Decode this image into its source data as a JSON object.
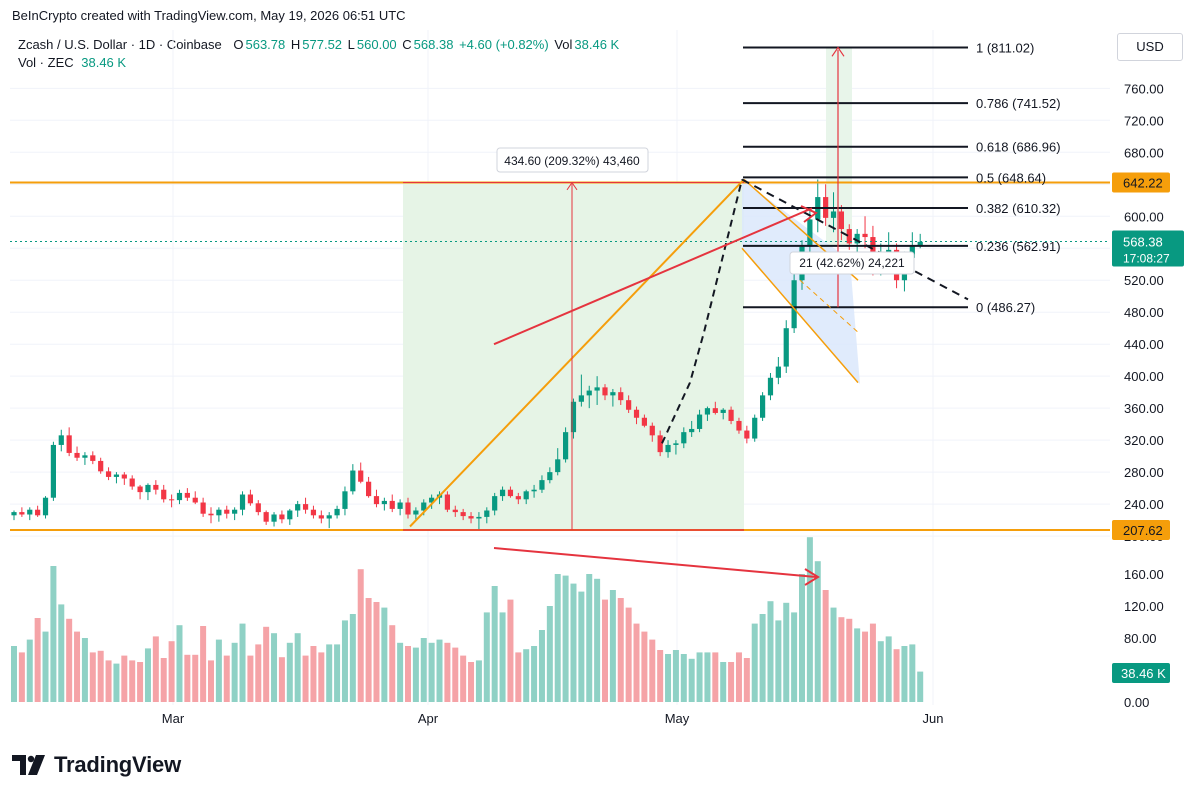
{
  "header": {
    "attribution": "BeInCrypto created with TradingView.com, May 19, 2026 06:51 UTC",
    "symbol": "Zcash / U.S. Dollar · 1D · Coinbase",
    "o_label": "O",
    "o_value": "563.78",
    "h_label": "H",
    "h_value": "577.52",
    "l_label": "L",
    "l_value": "560.00",
    "c_label": "C",
    "c_value": "568.38",
    "change": "+4.60 (+0.82%)",
    "vol_label": "Vol",
    "vol_value": "38.46 K",
    "vol_row_label": "Vol · ZEC",
    "vol_row_value": "38.46 K"
  },
  "currency_button": "USD",
  "brand": "TradingView",
  "colors": {
    "up": "#089981",
    "down": "#f23645",
    "vol_up": "#8fd1c5",
    "vol_down": "#f5a3a7",
    "orange": "#f59e0b",
    "red": "#e5343f",
    "green_zone": "#e6f4e6",
    "blue_channel": "#dbe8fb"
  },
  "chart_data": {
    "type": "candlestick",
    "xlabels": [
      "Mar",
      "Apr",
      "May",
      "Jun"
    ],
    "price_ticks": [
      "760.00",
      "720.00",
      "680.00",
      "640.00",
      "600.00",
      "560.00",
      "520.00",
      "480.00",
      "440.00",
      "400.00",
      "360.00",
      "320.00",
      "280.00",
      "240.00",
      "200.00"
    ],
    "volume_ticks": [
      "160.00",
      "120.00",
      "80.00",
      "40.00",
      "0.00"
    ],
    "price_range": [
      196,
      812
    ],
    "last_price": "568.38",
    "countdown": "17:08:27",
    "last_volume": "38.46 K",
    "level_tags": [
      {
        "price": 642.22,
        "label": "642.22"
      },
      {
        "price": 207.62,
        "label": "207.62"
      }
    ],
    "fib_levels": [
      {
        "price": 811.02,
        "label": "1 (811.02)"
      },
      {
        "price": 741.52,
        "label": "0.786 (741.52)"
      },
      {
        "price": 686.96,
        "label": "0.618 (686.96)"
      },
      {
        "price": 648.64,
        "label": "0.5 (648.64)"
      },
      {
        "price": 610.32,
        "label": "0.382 (610.32)"
      },
      {
        "price": 562.91,
        "label": "0.236 (562.91)"
      },
      {
        "price": 486.27,
        "label": "0 (486.27)"
      }
    ],
    "measure_rally": "434.60 (209.32%) 43,460",
    "measure_bounce": "21 (42.62%) 24,221",
    "candles": [
      [
        226,
        232,
        220,
        230,
        70
      ],
      [
        230,
        236,
        224,
        227,
        62
      ],
      [
        227,
        236,
        220,
        233,
        78
      ],
      [
        233,
        238,
        224,
        226,
        105
      ],
      [
        226,
        250,
        222,
        248,
        88
      ],
      [
        248,
        318,
        244,
        314,
        170
      ],
      [
        314,
        333,
        306,
        326,
        122
      ],
      [
        326,
        336,
        300,
        304,
        104
      ],
      [
        304,
        312,
        294,
        298,
        88
      ],
      [
        298,
        305,
        289,
        301,
        80
      ],
      [
        301,
        306,
        290,
        294,
        62
      ],
      [
        294,
        298,
        278,
        281,
        64
      ],
      [
        281,
        286,
        270,
        274,
        52
      ],
      [
        274,
        280,
        266,
        277,
        48
      ],
      [
        277,
        280,
        264,
        272,
        58
      ],
      [
        272,
        276,
        258,
        262,
        52
      ],
      [
        262,
        264,
        246,
        255,
        50
      ],
      [
        255,
        266,
        245,
        264,
        67
      ],
      [
        264,
        270,
        252,
        258,
        82
      ],
      [
        258,
        264,
        242,
        246,
        55
      ],
      [
        246,
        252,
        236,
        245,
        76
      ],
      [
        245,
        258,
        240,
        254,
        96
      ],
      [
        254,
        260,
        244,
        248,
        59
      ],
      [
        248,
        256,
        240,
        242,
        59
      ],
      [
        242,
        248,
        224,
        228,
        95
      ],
      [
        228,
        236,
        216,
        226,
        52
      ],
      [
        226,
        236,
        218,
        233,
        78
      ],
      [
        233,
        238,
        222,
        228,
        58
      ],
      [
        228,
        236,
        220,
        233,
        74
      ],
      [
        233,
        256,
        226,
        252,
        98
      ],
      [
        252,
        258,
        238,
        241,
        58
      ],
      [
        241,
        245,
        226,
        230,
        72
      ],
      [
        230,
        232,
        214,
        218,
        94
      ],
      [
        218,
        230,
        212,
        227,
        86
      ],
      [
        227,
        232,
        216,
        221,
        56
      ],
      [
        221,
        234,
        214,
        232,
        74
      ],
      [
        232,
        244,
        224,
        240,
        86
      ],
      [
        240,
        248,
        228,
        233,
        58
      ],
      [
        233,
        238,
        222,
        226,
        70
      ],
      [
        226,
        232,
        216,
        222,
        62
      ],
      [
        222,
        230,
        210,
        226,
        72
      ],
      [
        226,
        238,
        222,
        234,
        72
      ],
      [
        234,
        262,
        226,
        256,
        102
      ],
      [
        256,
        290,
        252,
        282,
        110
      ],
      [
        282,
        292,
        266,
        268,
        166
      ],
      [
        268,
        274,
        248,
        250,
        130
      ],
      [
        250,
        258,
        236,
        240,
        125
      ],
      [
        240,
        248,
        232,
        244,
        118
      ],
      [
        244,
        252,
        230,
        234,
        96
      ],
      [
        234,
        246,
        226,
        242,
        74
      ],
      [
        242,
        248,
        222,
        227,
        70
      ],
      [
        227,
        236,
        220,
        232,
        68
      ],
      [
        232,
        246,
        226,
        242,
        80
      ],
      [
        242,
        252,
        234,
        248,
        74
      ],
      [
        248,
        256,
        240,
        252,
        78
      ],
      [
        252,
        256,
        230,
        233,
        74
      ],
      [
        233,
        238,
        224,
        230,
        68
      ],
      [
        230,
        234,
        220,
        225,
        58
      ],
      [
        225,
        230,
        216,
        222,
        50
      ],
      [
        222,
        230,
        208,
        224,
        52
      ],
      [
        224,
        236,
        216,
        232,
        112
      ],
      [
        232,
        254,
        226,
        250,
        145
      ],
      [
        250,
        262,
        244,
        258,
        112
      ],
      [
        258,
        262,
        248,
        250,
        128
      ],
      [
        250,
        254,
        240,
        246,
        62
      ],
      [
        246,
        258,
        240,
        256,
        66
      ],
      [
        256,
        264,
        248,
        258,
        70
      ],
      [
        258,
        276,
        254,
        270,
        90
      ],
      [
        270,
        286,
        266,
        280,
        120
      ],
      [
        280,
        310,
        276,
        296,
        160
      ],
      [
        296,
        336,
        292,
        330,
        158
      ],
      [
        330,
        372,
        322,
        368,
        148
      ],
      [
        368,
        402,
        362,
        376,
        138
      ],
      [
        376,
        388,
        360,
        382,
        160
      ],
      [
        382,
        400,
        364,
        386,
        154
      ],
      [
        386,
        390,
        370,
        376,
        128
      ],
      [
        376,
        384,
        362,
        380,
        140
      ],
      [
        380,
        386,
        364,
        370,
        130
      ],
      [
        370,
        376,
        354,
        358,
        118
      ],
      [
        358,
        362,
        340,
        348,
        98
      ],
      [
        348,
        352,
        336,
        338,
        88
      ],
      [
        338,
        342,
        318,
        326,
        78
      ],
      [
        326,
        332,
        300,
        305,
        65
      ],
      [
        305,
        320,
        298,
        314,
        60
      ],
      [
        314,
        320,
        302,
        316,
        65
      ],
      [
        316,
        336,
        310,
        330,
        60
      ],
      [
        330,
        344,
        324,
        334,
        54
      ],
      [
        334,
        358,
        330,
        352,
        62
      ],
      [
        352,
        362,
        344,
        360,
        62
      ],
      [
        360,
        368,
        352,
        354,
        62
      ],
      [
        354,
        360,
        346,
        358,
        50
      ],
      [
        358,
        362,
        340,
        344,
        50
      ],
      [
        344,
        348,
        328,
        332,
        62
      ],
      [
        332,
        338,
        316,
        322,
        55
      ],
      [
        322,
        352,
        318,
        348,
        98
      ],
      [
        348,
        380,
        344,
        376,
        110
      ],
      [
        376,
        404,
        370,
        398,
        126
      ],
      [
        398,
        424,
        390,
        412,
        102
      ],
      [
        412,
        470,
        404,
        460,
        124
      ],
      [
        460,
        530,
        454,
        520,
        112
      ],
      [
        520,
        570,
        508,
        562,
        160
      ],
      [
        562,
        610,
        550,
        596,
        206
      ],
      [
        596,
        646,
        580,
        624,
        176
      ],
      [
        624,
        640,
        588,
        598,
        140
      ],
      [
        598,
        630,
        580,
        606,
        118
      ],
      [
        606,
        614,
        570,
        584,
        106
      ],
      [
        584,
        590,
        558,
        566,
        104
      ],
      [
        566,
        584,
        546,
        578,
        92
      ],
      [
        578,
        600,
        560,
        574,
        88
      ],
      [
        574,
        588,
        526,
        534,
        98
      ],
      [
        534,
        566,
        526,
        548,
        76
      ],
      [
        548,
        580,
        540,
        558,
        82
      ],
      [
        558,
        566,
        510,
        520,
        66
      ],
      [
        520,
        556,
        506,
        548,
        70
      ],
      [
        548,
        580,
        540,
        564,
        72
      ],
      [
        564,
        578,
        560,
        568,
        38
      ]
    ]
  }
}
